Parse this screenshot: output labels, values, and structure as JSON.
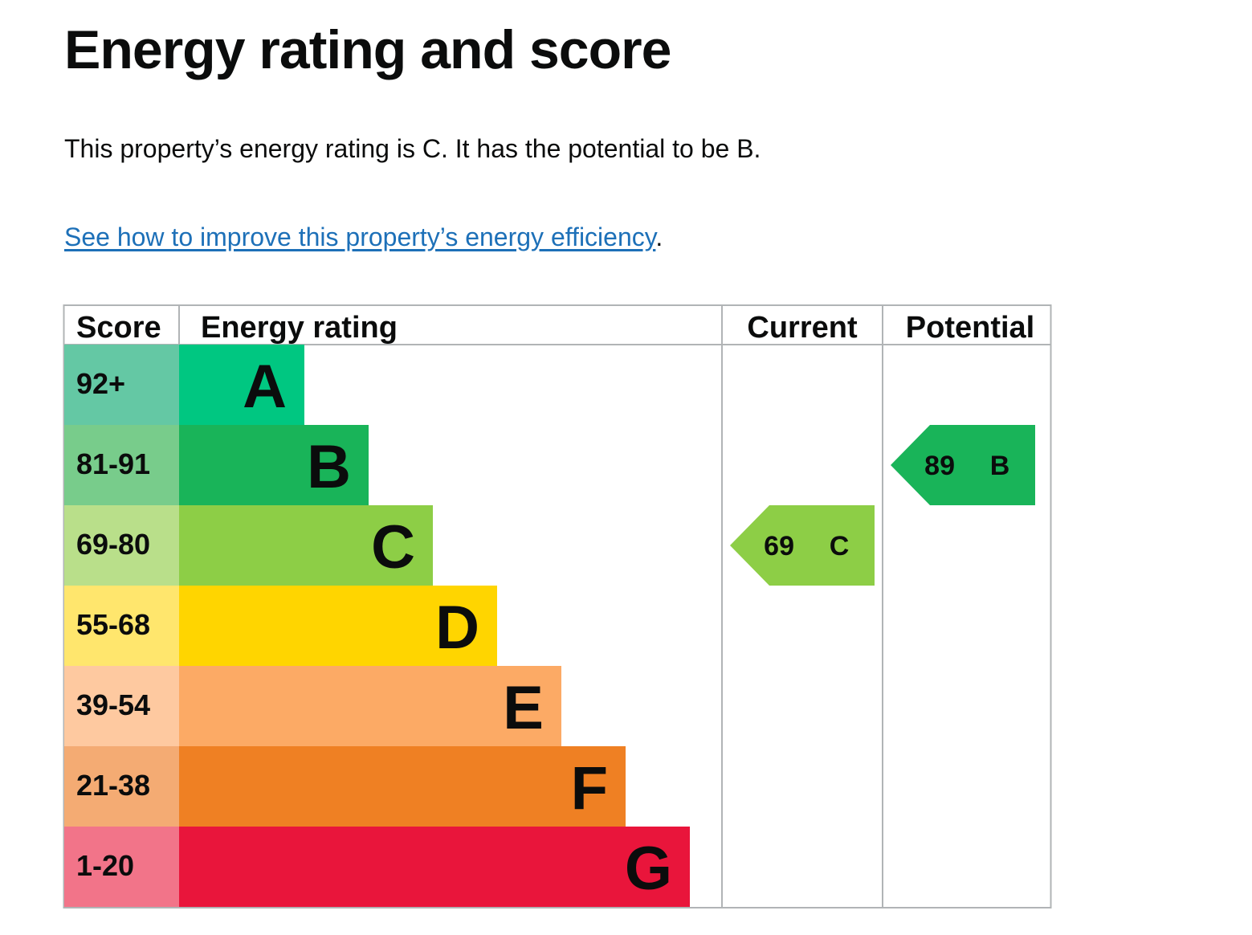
{
  "page": {
    "title": "Energy rating and score",
    "summary": "This property’s energy rating is C. It has the potential to be B.",
    "improve_link": "See how to improve this property’s energy efficiency",
    "improve_suffix": "."
  },
  "table": {
    "headers": {
      "score": "Score",
      "rating": "Energy rating",
      "current": "Current",
      "potential": "Potential"
    },
    "bands": [
      {
        "letter": "A",
        "range": "92+",
        "color": "#00c781",
        "score_bg": "#64c8a4"
      },
      {
        "letter": "B",
        "range": "81-91",
        "color": "#19b459",
        "score_bg": "#78cc8b"
      },
      {
        "letter": "C",
        "range": "69-80",
        "color": "#8dce46",
        "score_bg": "#b9df8a"
      },
      {
        "letter": "D",
        "range": "55-68",
        "color": "#ffd500",
        "score_bg": "#ffe66d"
      },
      {
        "letter": "E",
        "range": "39-54",
        "color": "#fcaa65",
        "score_bg": "#fec9a0"
      },
      {
        "letter": "F",
        "range": "21-38",
        "color": "#ef8023",
        "score_bg": "#f4ab73"
      },
      {
        "letter": "G",
        "range": "1-20",
        "color": "#e9153b",
        "score_bg": "#f27489"
      }
    ],
    "current": {
      "score": "69",
      "letter": "C",
      "band_index": 2,
      "color": "#8dce46"
    },
    "potential": {
      "score": "89",
      "letter": "B",
      "band_index": 1,
      "color": "#19b459"
    },
    "border_color": "#b1b4b6"
  }
}
